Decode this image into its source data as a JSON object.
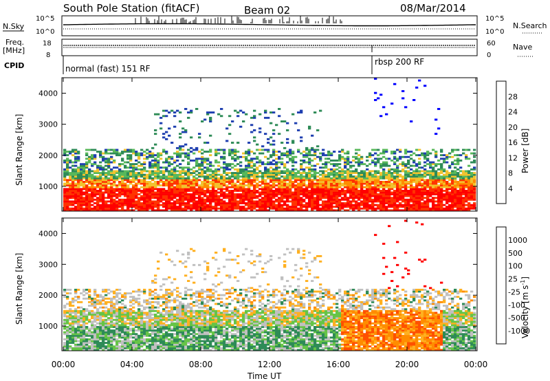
{
  "header": {
    "title": "South Pole Station (fitACF)",
    "beam": "Beam 02",
    "date": "08/Mar/2014"
  },
  "nsky_panel": {
    "left_label": "N.Sky",
    "right_label": "N.Search",
    "left_ticks": [
      "10^5",
      "10^0"
    ],
    "right_ticks": [
      "10^5",
      "10^0"
    ]
  },
  "freq_panel": {
    "left_label_line1": "Freq.",
    "left_label_line2": "[MHz]",
    "right_label": "Nave",
    "left_ticks": [
      "18",
      "8"
    ],
    "right_ticks": [
      "60",
      "0"
    ]
  },
  "cpid_panel": {
    "label": "CPID",
    "modes": [
      {
        "text": "normal (fast) 151 RF",
        "start_hour": 0
      },
      {
        "text": "rbsp 200 RF",
        "start_hour": 18
      }
    ]
  },
  "chart_data": [
    {
      "type": "heatmap",
      "name": "power",
      "ylabel": "Slant Range [km]",
      "xlabel": "Time UT",
      "xlim": [
        0,
        24
      ],
      "ylim": [
        200,
        4500
      ],
      "yticks": [
        "1000",
        "2000",
        "3000",
        "4000"
      ],
      "colorbar_label": "Power [dB]",
      "colorbar_ticks": [
        "28",
        "24",
        "20",
        "16",
        "12",
        "8",
        "4"
      ],
      "colors": [
        "#0000ff",
        "#1f3fb0",
        "#2e8b57",
        "#58b85a",
        "#f2c22e",
        "#ff8c00",
        "#ff3300",
        "#ff0000"
      ]
    },
    {
      "type": "heatmap",
      "name": "velocity",
      "ylabel": "Slant Range [km]",
      "xlabel": "Time UT",
      "xlim": [
        0,
        24
      ],
      "ylim": [
        200,
        4500
      ],
      "yticks": [
        "1000",
        "2000",
        "3000",
        "4000"
      ],
      "xticks": [
        "00:00",
        "04:00",
        "08:00",
        "12:00",
        "16:00",
        "20:00",
        "00:00"
      ],
      "colorbar_label": "Velocity [m s",
      "colorbar_sup": "-1",
      "colorbar_label_end": "]",
      "colorbar_ticks": [
        "1000",
        "500",
        "100",
        "25",
        "-25",
        "-100",
        "-500",
        "-1000"
      ],
      "colors": [
        "#1f3fb0",
        "#2f70c0",
        "#2e8b57",
        "#66c447",
        "#c0c0c0",
        "#ffb020",
        "#ff8c00",
        "#ff5000",
        "#ff0000"
      ]
    }
  ]
}
